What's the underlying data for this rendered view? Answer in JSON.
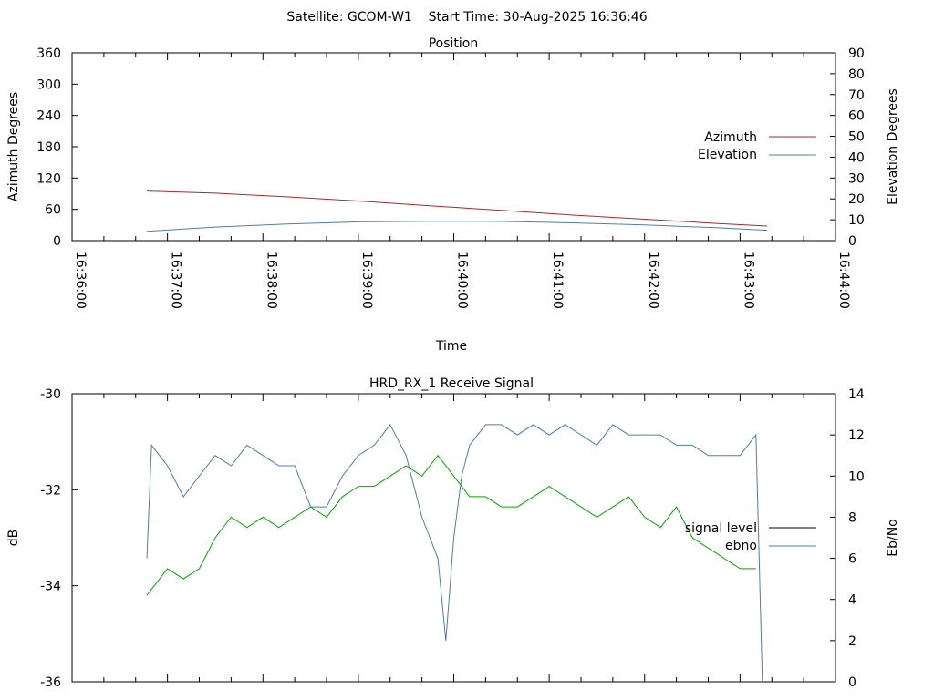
{
  "header": {
    "text": "Satellite: GCOM-W1    Start Time: 30-Aug-2025 16:36:46"
  },
  "chart_data": [
    {
      "type": "line",
      "title": "Position",
      "xlabel": "Time",
      "ylabel": "Azimuth Degrees",
      "y2label": "Elevation Degrees",
      "x_ticks": [
        "16:36:00",
        "16:37:00",
        "16:38:00",
        "16:39:00",
        "16:40:00",
        "16:41:00",
        "16:42:00",
        "16:43:00",
        "16:44:00"
      ],
      "y_ticks": [
        "0",
        "60",
        "120",
        "180",
        "240",
        "300",
        "360"
      ],
      "y2_ticks": [
        "0",
        "10",
        "20",
        "30",
        "40",
        "50",
        "60",
        "70",
        "80",
        "90"
      ],
      "xlim": [
        "16:36:00",
        "16:44:00"
      ],
      "ylim": [
        0,
        360
      ],
      "y2lim": [
        0,
        90
      ],
      "grid": false,
      "legend_placement": "right",
      "series": [
        {
          "name": "Azimuth",
          "axis": "left",
          "color": "#a52a2a",
          "points": [
            [
              "16:36:47",
              95
            ],
            [
              "16:37:30",
              91
            ],
            [
              "16:38:15",
              84
            ],
            [
              "16:39:00",
              76
            ],
            [
              "16:39:45",
              67
            ],
            [
              "16:40:30",
              58
            ],
            [
              "16:41:15",
              49
            ],
            [
              "16:42:00",
              41
            ],
            [
              "16:42:45",
              33
            ],
            [
              "16:43:17",
              28
            ]
          ]
        },
        {
          "name": "Elevation",
          "axis": "right",
          "color": "#4f7cae",
          "points": [
            [
              "16:36:47",
              4.5
            ],
            [
              "16:37:30",
              6.5
            ],
            [
              "16:38:15",
              8
            ],
            [
              "16:39:00",
              9
            ],
            [
              "16:39:45",
              9.3
            ],
            [
              "16:40:30",
              9.2
            ],
            [
              "16:41:15",
              8.5
            ],
            [
              "16:42:00",
              7.5
            ],
            [
              "16:42:45",
              6.2
            ],
            [
              "16:43:17",
              5
            ]
          ]
        }
      ]
    },
    {
      "type": "line",
      "title": "HRD_RX_1 Receive Signal",
      "ylabel": "dB",
      "y2label": "Eb/No",
      "y_ticks": [
        "-30",
        "-32",
        "-34",
        "-36"
      ],
      "y2_ticks": [
        "0",
        "2",
        "4",
        "6",
        "8",
        "10",
        "12",
        "14"
      ],
      "ylim": [
        -36,
        -30
      ],
      "y2lim": [
        0,
        14
      ],
      "xlim": [
        "16:36:00",
        "16:44:00"
      ],
      "grid": false,
      "legend_placement": "right",
      "series": [
        {
          "name": "signal level",
          "axis": "left",
          "color": "#000000",
          "points": []
        },
        {
          "name": "ebno",
          "axis": "right",
          "color": "#4f7cae",
          "points": [
            [
              "16:36:47",
              6
            ],
            [
              "16:36:50",
              11.5
            ],
            [
              "16:37:00",
              10.5
            ],
            [
              "16:37:10",
              9
            ],
            [
              "16:37:20",
              10
            ],
            [
              "16:37:30",
              11
            ],
            [
              "16:37:40",
              10.5
            ],
            [
              "16:37:50",
              11.5
            ],
            [
              "16:38:00",
              11
            ],
            [
              "16:38:10",
              10.5
            ],
            [
              "16:38:20",
              10.5
            ],
            [
              "16:38:30",
              8.5
            ],
            [
              "16:38:40",
              8.5
            ],
            [
              "16:38:50",
              10
            ],
            [
              "16:39:00",
              11
            ],
            [
              "16:39:10",
              11.5
            ],
            [
              "16:39:20",
              12.5
            ],
            [
              "16:39:30",
              11
            ],
            [
              "16:39:40",
              8
            ],
            [
              "16:39:50",
              6
            ],
            [
              "16:39:55",
              2
            ],
            [
              "16:40:00",
              7
            ],
            [
              "16:40:05",
              10
            ],
            [
              "16:40:10",
              11.5
            ],
            [
              "16:40:20",
              12.5
            ],
            [
              "16:40:30",
              12.5
            ],
            [
              "16:40:40",
              12
            ],
            [
              "16:40:50",
              12.5
            ],
            [
              "16:41:00",
              12
            ],
            [
              "16:41:10",
              12.5
            ],
            [
              "16:41:20",
              12
            ],
            [
              "16:41:30",
              11.5
            ],
            [
              "16:41:40",
              12.5
            ],
            [
              "16:41:50",
              12
            ],
            [
              "16:42:00",
              12
            ],
            [
              "16:42:10",
              12
            ],
            [
              "16:42:20",
              11.5
            ],
            [
              "16:42:30",
              11.5
            ],
            [
              "16:42:40",
              11
            ],
            [
              "16:42:50",
              11
            ],
            [
              "16:43:00",
              11
            ],
            [
              "16:43:10",
              12
            ],
            [
              "16:43:14",
              0
            ]
          ]
        },
        {
          "name": "",
          "axis": "right",
          "color": "#00aa00",
          "points": [
            [
              "16:36:47",
              4.2
            ],
            [
              "16:37:00",
              5.5
            ],
            [
              "16:37:10",
              5
            ],
            [
              "16:37:20",
              5.5
            ],
            [
              "16:37:30",
              7
            ],
            [
              "16:37:40",
              8
            ],
            [
              "16:37:50",
              7.5
            ],
            [
              "16:38:00",
              8
            ],
            [
              "16:38:10",
              7.5
            ],
            [
              "16:38:20",
              8
            ],
            [
              "16:38:30",
              8.5
            ],
            [
              "16:38:40",
              8
            ],
            [
              "16:38:50",
              9
            ],
            [
              "16:39:00",
              9.5
            ],
            [
              "16:39:10",
              9.5
            ],
            [
              "16:39:20",
              10
            ],
            [
              "16:39:30",
              10.5
            ],
            [
              "16:39:40",
              10
            ],
            [
              "16:39:50",
              11
            ],
            [
              "16:40:00",
              10
            ],
            [
              "16:40:10",
              9
            ],
            [
              "16:40:20",
              9
            ],
            [
              "16:40:30",
              8.5
            ],
            [
              "16:40:40",
              8.5
            ],
            [
              "16:40:50",
              9
            ],
            [
              "16:41:00",
              9.5
            ],
            [
              "16:41:10",
              9
            ],
            [
              "16:41:20",
              8.5
            ],
            [
              "16:41:30",
              8
            ],
            [
              "16:41:40",
              8.5
            ],
            [
              "16:41:50",
              9
            ],
            [
              "16:42:00",
              8
            ],
            [
              "16:42:10",
              7.5
            ],
            [
              "16:42:20",
              8.5
            ],
            [
              "16:42:30",
              7
            ],
            [
              "16:42:40",
              6.5
            ],
            [
              "16:42:50",
              6
            ],
            [
              "16:43:00",
              5.5
            ],
            [
              "16:43:10",
              5.5
            ]
          ]
        }
      ]
    }
  ]
}
